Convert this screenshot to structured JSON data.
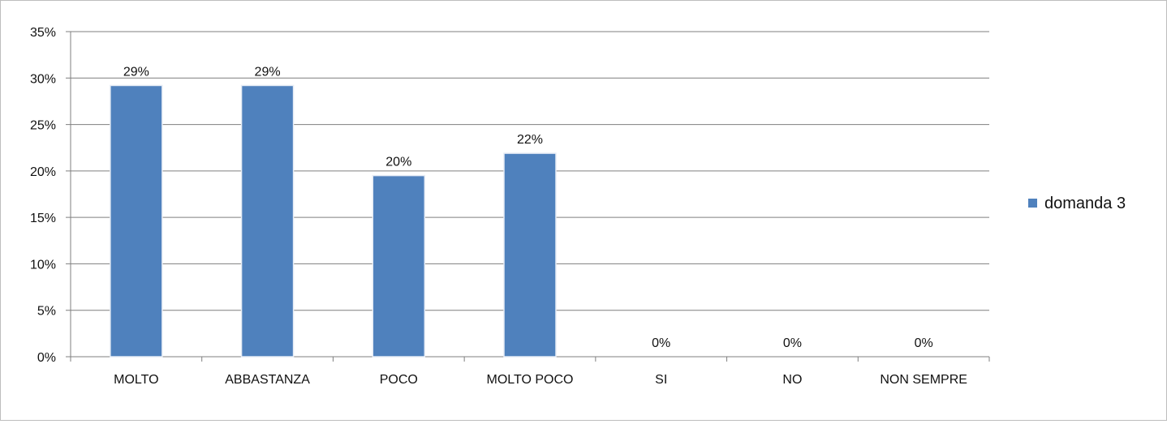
{
  "chart_data": {
    "type": "bar",
    "categories": [
      "MOLTO",
      "ABBASTANZA",
      "POCO",
      "MOLTO POCO",
      "SI",
      "NO",
      "NON SEMPRE"
    ],
    "series": [
      {
        "name": "domanda 3",
        "values": [
          0.292,
          0.292,
          0.195,
          0.219,
          0,
          0,
          0
        ],
        "data_labels": [
          "29%",
          "29%",
          "20%",
          "22%",
          "0%",
          "0%",
          "0%"
        ],
        "color": "#4f81bd"
      }
    ],
    "ylim": [
      0,
      0.35
    ],
    "yticks": [
      0,
      0.05,
      0.1,
      0.15,
      0.2,
      0.25,
      0.3,
      0.35
    ],
    "ytick_labels": [
      "0%",
      "5%",
      "10%",
      "15%",
      "20%",
      "25%",
      "30%",
      "35%"
    ],
    "grid": true,
    "legend_position": "right",
    "gridline_color": "#7f7f7f"
  }
}
